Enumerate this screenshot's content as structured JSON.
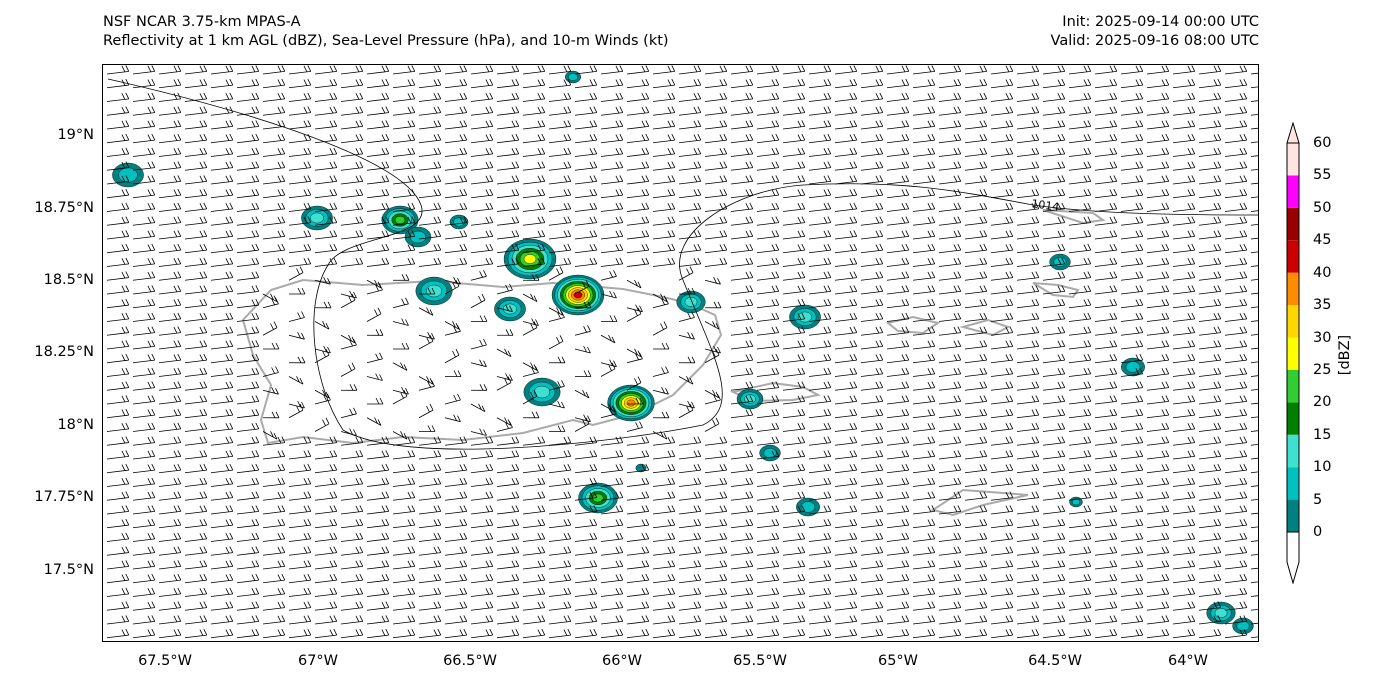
{
  "header": {
    "model": "NSF NCAR 3.75-km MPAS-A",
    "fields": "Reflectivity at 1 km AGL (dBZ), Sea-Level Pressure (hPa), and 10-m Winds (kt)",
    "init": "Init: 2025-09-14 00:00 UTC",
    "valid": "Valid: 2025-09-16 08:00 UTC"
  },
  "lat_labels": [
    "19°N",
    "18.75°N",
    "18.5°N",
    "18.25°N",
    "18°N",
    "17.75°N",
    "17.5°N"
  ],
  "lon_labels": [
    "67.5°W",
    "67°W",
    "66.5°W",
    "66°W",
    "65.5°W",
    "65°W",
    "64.5°W",
    "64°W"
  ],
  "contour_label": "1014",
  "colorbar": {
    "unit": "[dBZ]",
    "ticks": [
      "0",
      "5",
      "10",
      "15",
      "20",
      "25",
      "30",
      "35",
      "40",
      "45",
      "50",
      "55",
      "60"
    ],
    "colors": [
      "#008080",
      "#00c0c0",
      "#40e0d0",
      "#008000",
      "#32cd32",
      "#ffff00",
      "#ffd700",
      "#ff8c00",
      "#cc0000",
      "#990000",
      "#ff00ff",
      "#ffe4e1"
    ]
  }
}
